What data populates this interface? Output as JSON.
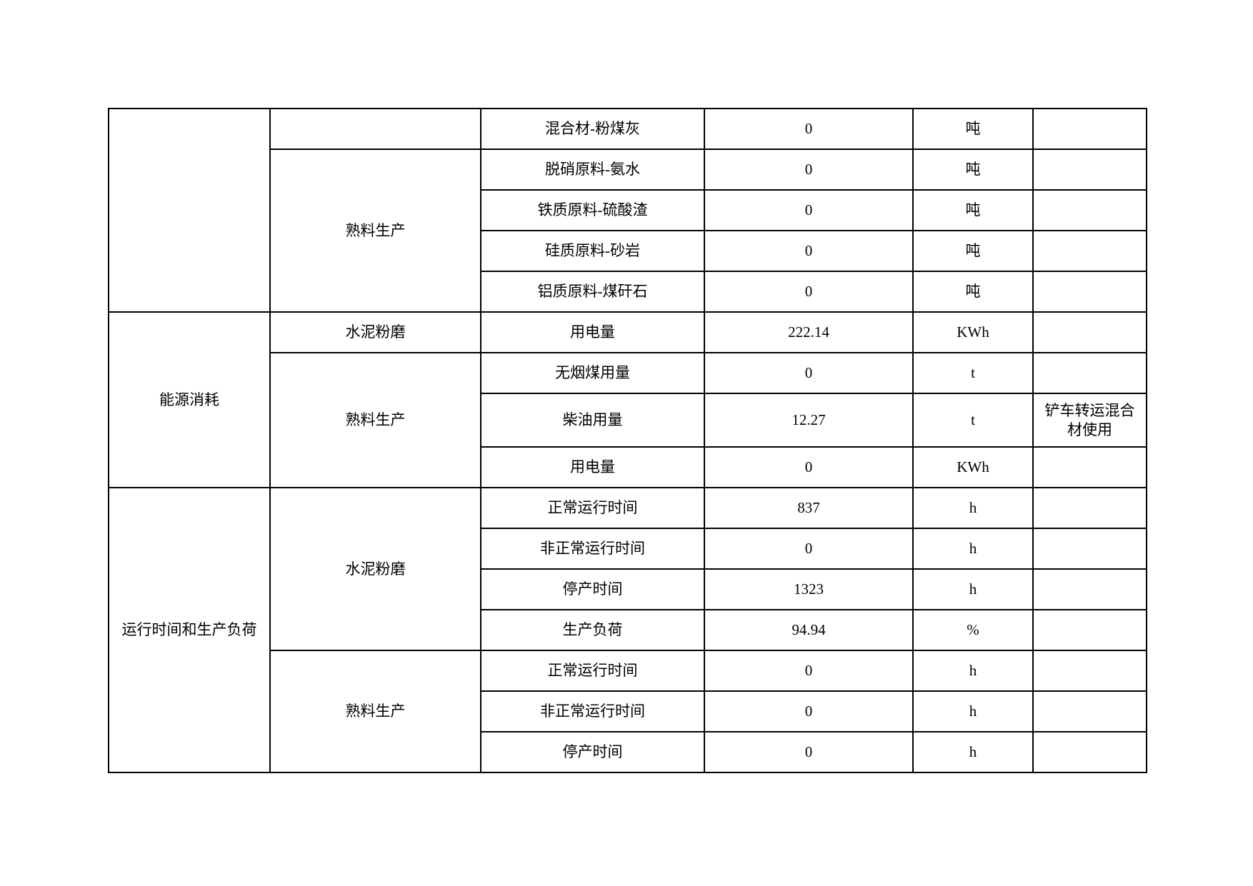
{
  "page": {
    "background_color": "#ffffff",
    "text_color": "#000000",
    "description": "Production statistics table (continuation page, first category cell carried over blank)"
  },
  "table": {
    "columns": [
      "category",
      "group",
      "item",
      "value",
      "unit",
      "note"
    ],
    "sections": [
      {
        "category": "",
        "groups": [
          {
            "group": "",
            "items": [
              "混合材-粉煤灰"
            ]
          },
          {
            "group": "熟料生产",
            "items": [
              "脱硝原料-氨水",
              "铁质原料-硫酸渣",
              "硅质原料-砂岩",
              "铝质原料-煤矸石"
            ]
          }
        ]
      },
      {
        "category": "能源消耗",
        "groups": [
          {
            "group": "水泥粉磨",
            "items": [
              "用电量"
            ]
          },
          {
            "group": "熟料生产",
            "items": [
              "无烟煤用量",
              "柴油用量",
              "用电量"
            ]
          }
        ]
      },
      {
        "category": "运行时间和生产负荷",
        "groups": [
          {
            "group": "水泥粉磨",
            "items": [
              "正常运行时间",
              "非正常运行时间",
              "停产时间",
              "生产负荷"
            ]
          },
          {
            "group": "熟料生产",
            "items": [
              "正常运行时间",
              "非正常运行时间",
              "停产时间"
            ]
          }
        ]
      }
    ],
    "rows": [
      {
        "category": "",
        "group": "",
        "item": "混合材-粉煤灰",
        "value": "0",
        "unit": "吨",
        "note": ""
      },
      {
        "group": "熟料生产",
        "item": "脱硝原料-氨水",
        "value": "0",
        "unit": "吨",
        "note": ""
      },
      {
        "item": "铁质原料-硫酸渣",
        "value": "0",
        "unit": "吨",
        "note": ""
      },
      {
        "item": "硅质原料-砂岩",
        "value": "0",
        "unit": "吨",
        "note": ""
      },
      {
        "item": "铝质原料-煤矸石",
        "value": "0",
        "unit": "吨",
        "note": ""
      },
      {
        "category": "能源消耗",
        "group": "水泥粉磨",
        "item": "用电量",
        "value": "222.14",
        "unit": "KWh",
        "note": ""
      },
      {
        "group": "熟料生产",
        "item": "无烟煤用量",
        "value": "0",
        "unit": "t",
        "note": ""
      },
      {
        "item": "柴油用量",
        "value": "12.27",
        "unit": "t",
        "note": "铲车转运混合材使用"
      },
      {
        "item": "用电量",
        "value": "0",
        "unit": "KWh",
        "note": ""
      },
      {
        "category": "运行时间和生产负荷",
        "group": "水泥粉磨",
        "item": "正常运行时间",
        "value": "837",
        "unit": "h",
        "note": ""
      },
      {
        "item": "非正常运行时间",
        "value": "0",
        "unit": "h",
        "note": ""
      },
      {
        "item": "停产时间",
        "value": "1323",
        "unit": "h",
        "note": ""
      },
      {
        "item": "生产负荷",
        "value": "94.94",
        "unit": "%",
        "note": ""
      },
      {
        "group": "熟料生产",
        "item": "正常运行时间",
        "value": "0",
        "unit": "h",
        "note": ""
      },
      {
        "item": "非正常运行时间",
        "value": "0",
        "unit": "h",
        "note": ""
      },
      {
        "item": "停产时间",
        "value": "0",
        "unit": "h",
        "note": ""
      }
    ]
  }
}
